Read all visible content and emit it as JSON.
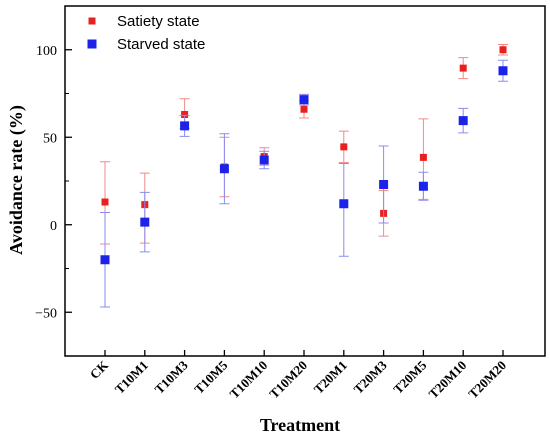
{
  "chart_data": {
    "type": "scatter",
    "title": "",
    "xlabel": "Treatment",
    "ylabel": "Avoidance rate (%)",
    "categories": [
      "CK",
      "T10M1",
      "T10M3",
      "T10M5",
      "T10M10",
      "T10M20",
      "T20M1",
      "T20M3",
      "T20M5",
      "T20M10",
      "T20M20"
    ],
    "ylim": [
      -75,
      125
    ],
    "yticks": [
      -50,
      0,
      50,
      100
    ],
    "ytick_labels": [
      "−50",
      "0",
      "50",
      "100"
    ],
    "grid": false,
    "legend_position": "top-left",
    "error_bars": true,
    "series": [
      {
        "name": "Satiety state",
        "color": "#e8201f",
        "values": [
          13,
          11.5,
          63,
          33,
          39,
          66,
          44.5,
          6.5,
          38.5,
          89.5,
          100
        ],
        "err_low": [
          24,
          22,
          8,
          17,
          5,
          5,
          9,
          13,
          24,
          6,
          3
        ],
        "err_high": [
          23,
          18,
          9,
          17,
          5,
          5,
          9,
          13,
          22,
          6,
          3
        ]
      },
      {
        "name": "Starved state",
        "color": "#1d22e8",
        "values": [
          -20,
          1.5,
          56.5,
          32,
          37,
          71.5,
          12,
          23,
          22,
          59.5,
          88
        ],
        "err_low": [
          27,
          17,
          6,
          20,
          5,
          3,
          30,
          22,
          8,
          7,
          6
        ],
        "err_high": [
          27,
          17,
          6,
          20,
          5,
          3,
          23,
          22,
          8,
          7,
          6
        ]
      }
    ]
  }
}
